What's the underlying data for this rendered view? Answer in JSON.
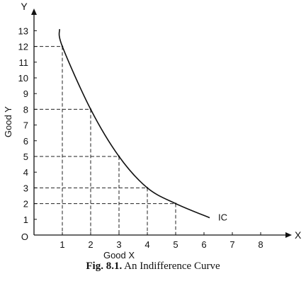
{
  "chart_data": {
    "type": "line",
    "title": "",
    "xlabel": "Good X",
    "ylabel": "Good Y",
    "x_axis_letter": "X",
    "y_axis_letter": "Y",
    "origin_label": "O",
    "xlim": [
      0,
      8.9
    ],
    "ylim": [
      0,
      14
    ],
    "x_ticks": [
      1,
      2,
      3,
      4,
      5,
      6,
      7,
      8
    ],
    "y_ticks": [
      1,
      2,
      3,
      4,
      5,
      6,
      7,
      8,
      9,
      10,
      11,
      12,
      13
    ],
    "grid": false,
    "series": [
      {
        "name": "IC",
        "x": [
          1,
          2,
          3,
          4,
          5
        ],
        "y": [
          12,
          8,
          5,
          3,
          2
        ],
        "curve_extent": {
          "x": [
            0.9,
            6.2
          ],
          "y": [
            13.1,
            1.1
          ]
        }
      }
    ],
    "reference_points": [
      {
        "x": 1,
        "y": 12
      },
      {
        "x": 2,
        "y": 8
      },
      {
        "x": 3,
        "y": 5
      },
      {
        "x": 4,
        "y": 3
      },
      {
        "x": 5,
        "y": 2
      }
    ],
    "caption_bold": "Fig. 8.1.",
    "caption_text": " An Indifference Curve"
  }
}
